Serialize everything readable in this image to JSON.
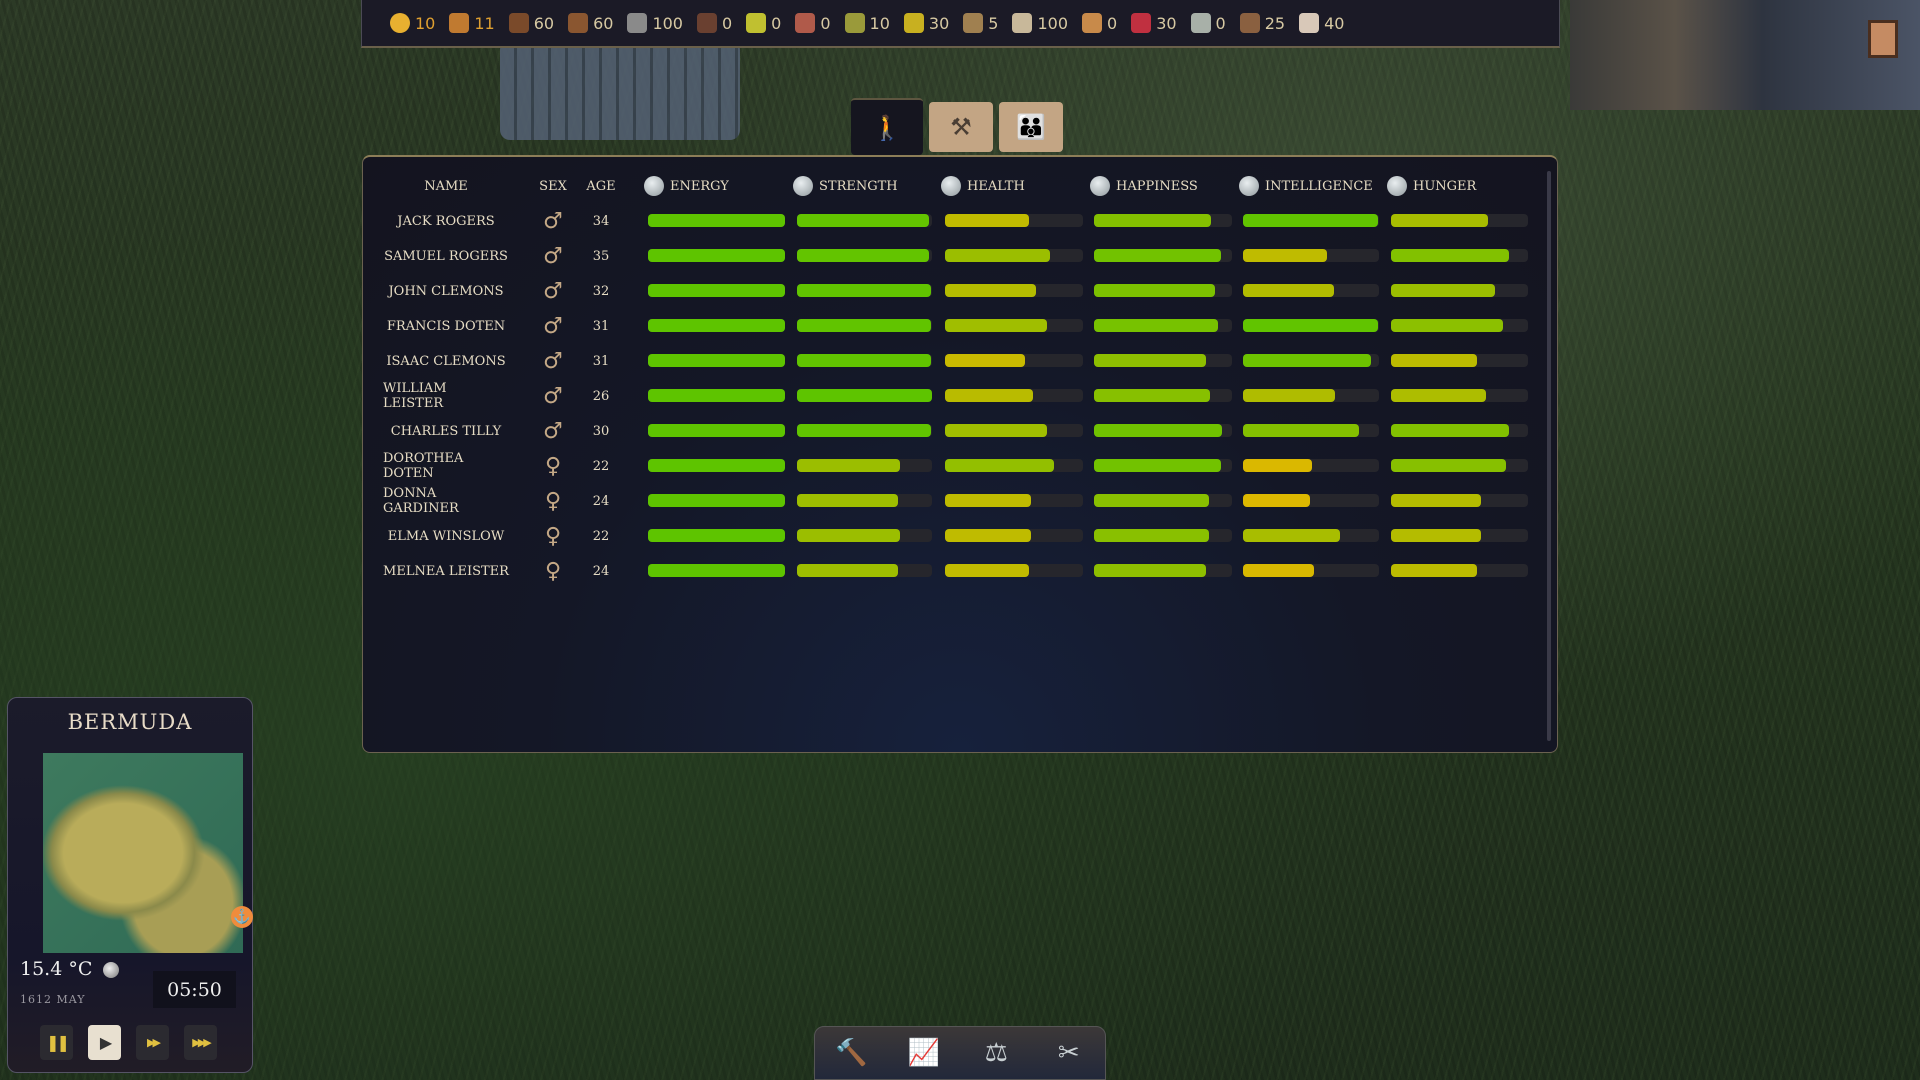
{
  "resources": [
    {
      "icon": "gold-coin-icon",
      "value": "10",
      "color": "#e8b030",
      "highlight": true
    },
    {
      "icon": "colonists-icon",
      "value": "11",
      "color": "#c07a30",
      "highlight": true
    },
    {
      "icon": "logs-icon",
      "value": "60",
      "color": "#7a4a2a"
    },
    {
      "icon": "planks-icon",
      "value": "60",
      "color": "#8a5630"
    },
    {
      "icon": "stone-icon",
      "value": "100",
      "color": "#8a8a8a"
    },
    {
      "icon": "bricks-icon",
      "value": "0",
      "color": "#6a4030"
    },
    {
      "icon": "corn-icon",
      "value": "0",
      "color": "#c0c030"
    },
    {
      "icon": "potatoes-icon",
      "value": "0",
      "color": "#b05a4a"
    },
    {
      "icon": "wheat-icon",
      "value": "10",
      "color": "#9a9a3a"
    },
    {
      "icon": "maize-icon",
      "value": "30",
      "color": "#c8b020"
    },
    {
      "icon": "grain-icon",
      "value": "5",
      "color": "#a08050"
    },
    {
      "icon": "flour-icon",
      "value": "100",
      "color": "#c8b89a"
    },
    {
      "icon": "bread-icon",
      "value": "0",
      "color": "#c88a4a"
    },
    {
      "icon": "meat-icon",
      "value": "30",
      "color": "#c03040"
    },
    {
      "icon": "fish-icon",
      "value": "0",
      "color": "#a8b0a8"
    },
    {
      "icon": "firewood-icon",
      "value": "25",
      "color": "#8a6040"
    },
    {
      "icon": "egg-icon",
      "value": "40",
      "color": "#d8c8b8"
    }
  ],
  "tabs": [
    {
      "name": "tab-individual",
      "glyph": "🚶",
      "active": true
    },
    {
      "name": "tab-work",
      "glyph": "⚒"
    },
    {
      "name": "tab-families",
      "glyph": "👪"
    }
  ],
  "table": {
    "headers": {
      "name": "NAME",
      "sex": "SEX",
      "age": "AGE"
    },
    "stats": [
      {
        "label": "ENERGY",
        "icon": "moon-icon"
      },
      {
        "label": "STRENGTH",
        "icon": "flexed-arm-icon"
      },
      {
        "label": "HEALTH",
        "icon": "heart-icon"
      },
      {
        "label": "HAPPINESS",
        "icon": "smiley-icon"
      },
      {
        "label": "INTELLIGENCE",
        "icon": "brain-head-icon"
      },
      {
        "label": "HUNGER",
        "icon": "crossed-utensils-icon"
      }
    ],
    "rows": [
      {
        "name": "JACK ROGERS",
        "sex": "male",
        "sex_glyph": "♂",
        "age": "34",
        "stats": [
          100,
          98,
          61,
          85,
          99,
          71
        ]
      },
      {
        "name": "SAMUEL  ROGERS",
        "sex": "male",
        "sex_glyph": "♂",
        "age": "35",
        "stats": [
          100,
          98,
          76,
          92,
          62,
          86
        ]
      },
      {
        "name": "JOHN CLEMONS",
        "sex": "male",
        "sex_glyph": "♂",
        "age": "32",
        "stats": [
          100,
          99,
          66,
          88,
          67,
          76
        ]
      },
      {
        "name": "FRANCIS DOTEN",
        "sex": "male",
        "sex_glyph": "♂",
        "age": "31",
        "stats": [
          100,
          99,
          74,
          90,
          99,
          82
        ]
      },
      {
        "name": "ISAAC CLEMONS",
        "sex": "male",
        "sex_glyph": "♂",
        "age": "31",
        "stats": [
          100,
          99,
          58,
          81,
          94,
          63
        ]
      },
      {
        "name": "WILLIAM LEISTER",
        "sex": "male",
        "sex_glyph": "♂",
        "age": "26",
        "stats": [
          100,
          100,
          64,
          84,
          68,
          69
        ]
      },
      {
        "name": "CHARLES TILLY",
        "sex": "male",
        "sex_glyph": "♂",
        "age": "30",
        "stats": [
          100,
          99,
          74,
          93,
          85,
          86
        ]
      },
      {
        "name": "DOROTHEA DOTEN",
        "sex": "female",
        "sex_glyph": "♀",
        "age": "22",
        "stats": [
          100,
          76,
          79,
          92,
          51,
          84
        ]
      },
      {
        "name": "DONNA GARDINER",
        "sex": "female",
        "sex_glyph": "♀",
        "age": "24",
        "stats": [
          100,
          75,
          62,
          83,
          49,
          66
        ]
      },
      {
        "name": "ELMA WINSLOW",
        "sex": "female",
        "sex_glyph": "♀",
        "age": "22",
        "stats": [
          100,
          76,
          62,
          83,
          71,
          66
        ]
      },
      {
        "name": "MELNEA LEISTER",
        "sex": "female",
        "sex_glyph": "♀",
        "age": "24",
        "stats": [
          100,
          75,
          61,
          81,
          52,
          63
        ]
      }
    ]
  },
  "info": {
    "location": "BERMUDA",
    "temperature": "15.4 °C",
    "date": "1612 MAY",
    "time": "05:50",
    "anchor_glyph": "⚓"
  },
  "speed": [
    {
      "name": "pause-button",
      "glyph": "❚❚"
    },
    {
      "name": "play-button",
      "glyph": "▶",
      "active": true
    },
    {
      "name": "fast-forward-button",
      "glyph": "▶▶"
    },
    {
      "name": "fastest-button",
      "glyph": "▶▶▶"
    }
  ],
  "toolbar": [
    {
      "name": "build-hammer-button",
      "glyph": "🔨"
    },
    {
      "name": "statistics-button",
      "glyph": "📈"
    },
    {
      "name": "trade-scales-button",
      "glyph": "⚖"
    },
    {
      "name": "demolish-button",
      "glyph": "✂"
    }
  ]
}
